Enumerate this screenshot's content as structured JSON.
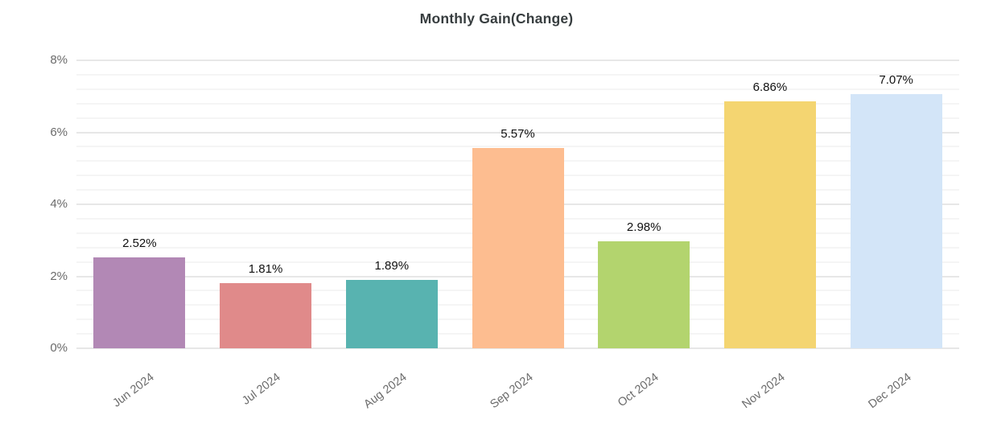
{
  "chart_data": {
    "type": "bar",
    "title": "Monthly Gain(Change)",
    "categories": [
      "Jun 2024",
      "Jul 2024",
      "Aug 2024",
      "Sep 2024",
      "Oct 2024",
      "Nov 2024",
      "Dec 2024"
    ],
    "values": [
      2.52,
      1.81,
      1.89,
      5.57,
      2.98,
      6.86,
      7.07
    ],
    "data_labels": [
      "2.52%",
      "1.81%",
      "1.89%",
      "5.57%",
      "2.98%",
      "6.86%",
      "7.07%"
    ],
    "bar_colors": [
      "#b288b5",
      "#e08a8a",
      "#58b3b0",
      "#fdbd90",
      "#b3d46e",
      "#f4d571",
      "#d3e5f8"
    ],
    "y_tick_labels": [
      "8%",
      "6%",
      "4%",
      "2%",
      "0%"
    ],
    "y_tick_values": [
      8,
      6,
      4,
      2,
      0
    ],
    "ylim": [
      0,
      8
    ],
    "minor_grid_step": 0.4,
    "major_grid_step": 2,
    "grid": true,
    "legend_position": "none",
    "xlabel": "",
    "ylabel": ""
  },
  "colors": {
    "background": "#ffffff",
    "major_grid": "#e7e7e7",
    "minor_grid": "#f5f5f5",
    "title_text": "#373d3f",
    "axis_text": "#6b6b6b",
    "data_label_text": "#111111"
  }
}
